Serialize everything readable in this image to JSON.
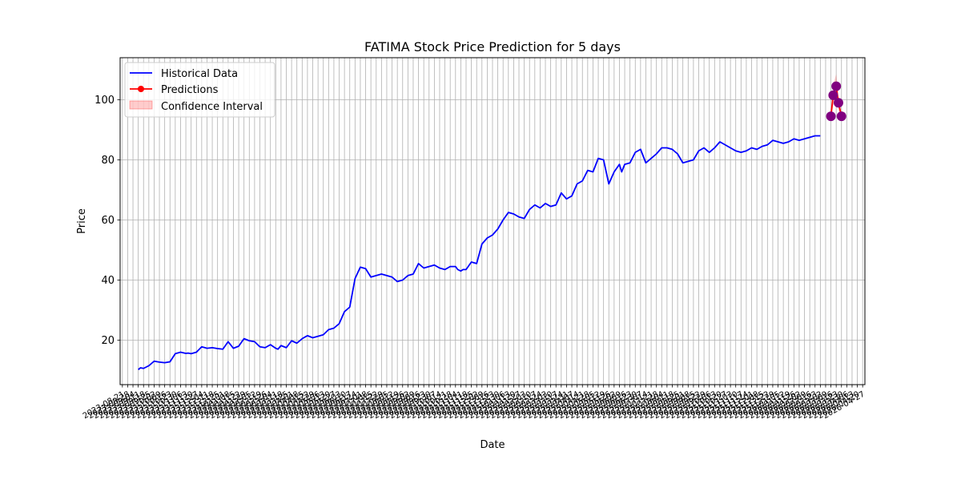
{
  "chart_data": {
    "type": "line",
    "title": "FATIMA Stock Price Prediction for 5 days",
    "xlabel": "Date",
    "ylabel": "Price",
    "ylim": [
      5.2,
      114
    ],
    "yticks": [
      20,
      40,
      60,
      80,
      100
    ],
    "grid": true,
    "legend_position": "upper-left",
    "legend": [
      "Historical Data",
      "Predictions",
      "Confidence Interval"
    ],
    "xtick_labels": [
      "2023-08-21",
      "2023-08-28",
      "2023-09-04",
      "2023-09-11",
      "2023-09-18",
      "2023-09-25",
      "2023-10-02",
      "2023-10-09",
      "2023-10-16",
      "2023-10-23",
      "2023-10-30",
      "2023-11-06",
      "2023-11-13",
      "2023-11-20",
      "2023-11-27",
      "2023-12-04",
      "2023-12-11",
      "2023-12-18",
      "2023-12-25",
      "2024-01-01",
      "2024-01-08",
      "2024-01-15",
      "2024-01-22",
      "2024-01-29",
      "2024-02-05",
      "2024-02-12",
      "2024-02-19",
      "2024-02-26",
      "2024-03-04",
      "2024-03-11",
      "2024-03-18",
      "2024-03-25",
      "2024-04-01",
      "2024-04-08",
      "2024-04-15",
      "2024-04-22",
      "2024-04-29",
      "2024-05-06",
      "2024-05-13",
      "2024-05-20",
      "2024-05-27",
      "2024-06-03",
      "2024-06-10",
      "2024-06-17",
      "2024-06-24",
      "2024-07-01",
      "2024-07-08",
      "2024-07-15",
      "2024-07-22",
      "2024-07-29",
      "2024-08-05",
      "2024-08-12",
      "2024-08-19",
      "2024-08-26",
      "2024-09-02",
      "2024-09-09",
      "2024-09-16",
      "2024-09-23",
      "2024-09-30",
      "2024-10-07",
      "2024-10-14",
      "2024-10-21",
      "2024-10-28",
      "2024-11-04",
      "2024-11-11",
      "2024-11-18",
      "2024-11-25",
      "2024-12-02",
      "2024-12-09",
      "2024-12-16",
      "2024-12-23",
      "2024-12-30",
      "2025-01-06",
      "2025-01-13",
      "2025-01-20",
      "2025-01-27",
      "2025-02-03",
      "2025-02-10",
      "2025-02-17",
      "2025-02-24",
      "2025-03-03",
      "2025-03-10",
      "2025-03-17",
      "2025-03-24",
      "2025-03-31",
      "2025-04-07",
      "2025-04-14",
      "2025-04-21",
      "2025-04-28",
      "2025-05-05",
      "2025-05-12",
      "2025-05-19",
      "2025-05-26",
      "2025-06-02",
      "2025-06-09",
      "2025-06-16",
      "2025-06-23",
      "2025-06-30",
      "2025-07-07",
      "2025-07-14",
      "2025-07-21",
      "2025-07-28",
      "2025-08-04",
      "2025-08-11",
      "2025-08-18",
      "2025-08-25",
      "2025-09-01",
      "2025-09-08",
      "2025-09-15",
      "2025-09-22",
      "2025-09-29",
      "2025-10-06",
      "2025-10-13",
      "2025-10-20",
      "2025-10-27",
      "2025-11-03",
      "2025-11-10",
      "2025-11-17",
      "2025-11-24",
      "2025-12-01",
      "2025-12-08",
      "2025-12-15",
      "2025-12-22",
      "2025-12-29",
      "2026-01-05",
      "2026-01-12",
      "2026-01-19",
      "2026-01-26",
      "2026-02-02",
      "2026-02-09",
      "2026-02-16",
      "2026-02-23",
      "2026-03-02",
      "2026-03-09",
      "2026-03-16",
      "2026-03-23",
      "2026-03-30",
      "2026-04-06",
      "2026-04-13",
      "2026-04-20",
      "2026-04-27"
    ],
    "series": [
      {
        "name": "Historical Data",
        "color": "#0000ff",
        "x": [
          "2023-09-11",
          "2023-09-14",
          "2023-09-18",
          "2023-09-25",
          "2023-10-02",
          "2023-10-09",
          "2023-10-16",
          "2023-10-23",
          "2023-10-30",
          "2023-11-06",
          "2023-11-13",
          "2023-11-16",
          "2023-11-20",
          "2023-11-27",
          "2023-12-04",
          "2023-12-11",
          "2023-12-18",
          "2023-12-25",
          "2024-01-01",
          "2024-01-08",
          "2024-01-15",
          "2024-01-22",
          "2024-01-29",
          "2024-02-05",
          "2024-02-12",
          "2024-02-19",
          "2024-02-26",
          "2024-03-04",
          "2024-03-11",
          "2024-03-14",
          "2024-03-18",
          "2024-03-25",
          "2024-04-01",
          "2024-04-08",
          "2024-04-15",
          "2024-04-22",
          "2024-04-29",
          "2024-05-06",
          "2024-05-13",
          "2024-05-20",
          "2024-05-27",
          "2024-06-03",
          "2024-06-10",
          "2024-06-17",
          "2024-06-24",
          "2024-07-01",
          "2024-07-08",
          "2024-07-15",
          "2024-07-22",
          "2024-07-29",
          "2024-08-05",
          "2024-08-12",
          "2024-08-19",
          "2024-08-26",
          "2024-09-02",
          "2024-09-09",
          "2024-09-16",
          "2024-09-23",
          "2024-09-30",
          "2024-10-07",
          "2024-10-14",
          "2024-10-21",
          "2024-10-28",
          "2024-11-04",
          "2024-11-07",
          "2024-11-11",
          "2024-11-14",
          "2024-11-18",
          "2024-11-25",
          "2024-12-02",
          "2024-12-09",
          "2024-12-16",
          "2024-12-23",
          "2024-12-30",
          "2025-01-06",
          "2025-01-13",
          "2025-01-20",
          "2025-01-27",
          "2025-02-03",
          "2025-02-10",
          "2025-02-17",
          "2025-02-24",
          "2025-03-03",
          "2025-03-10",
          "2025-03-17",
          "2025-03-24",
          "2025-03-31",
          "2025-04-07",
          "2025-04-14",
          "2025-04-21",
          "2025-04-28",
          "2025-05-05",
          "2025-05-12",
          "2025-05-19",
          "2025-05-26",
          "2025-06-02",
          "2025-06-09",
          "2025-06-12",
          "2025-06-16",
          "2025-06-23",
          "2025-06-30",
          "2025-07-07",
          "2025-07-14",
          "2025-07-21",
          "2025-07-28",
          "2025-08-04",
          "2025-08-11",
          "2025-08-18",
          "2025-08-25",
          "2025-09-01",
          "2025-09-08",
          "2025-09-15",
          "2025-09-22",
          "2025-09-29",
          "2025-10-06",
          "2025-10-13",
          "2025-10-20",
          "2025-10-27",
          "2025-11-03",
          "2025-11-10",
          "2025-11-17",
          "2025-11-24",
          "2025-12-01",
          "2025-12-08",
          "2025-12-15",
          "2025-12-22",
          "2025-12-29",
          "2026-01-05",
          "2026-01-12",
          "2026-01-19",
          "2026-01-26",
          "2026-02-02",
          "2026-02-09",
          "2026-02-16",
          "2026-02-23",
          "2026-03-02"
        ],
        "values": [
          10.2,
          10.8,
          10.6,
          11.5,
          13.0,
          12.7,
          12.5,
          12.8,
          15.5,
          16.0,
          15.6,
          15.7,
          15.5,
          16.0,
          17.8,
          17.3,
          17.5,
          17.2,
          17.0,
          19.5,
          17.3,
          18.0,
          20.5,
          19.8,
          19.5,
          17.8,
          17.5,
          18.5,
          17.3,
          17.0,
          18.2,
          17.5,
          19.8,
          19.0,
          20.5,
          21.5,
          20.8,
          21.3,
          21.8,
          23.5,
          24.0,
          25.5,
          29.5,
          31.0,
          40.5,
          44.3,
          43.8,
          41.0,
          41.5,
          42.0,
          41.5,
          41.0,
          39.5,
          40.0,
          41.5,
          42.0,
          45.5,
          44.0,
          44.5,
          45.0,
          44.0,
          43.5,
          44.5,
          44.5,
          43.5,
          43.0,
          43.5,
          43.5,
          46.0,
          45.5,
          52.0,
          54.0,
          55.0,
          57.0,
          60.0,
          62.5,
          62.0,
          61.0,
          60.5,
          63.5,
          65.0,
          64.0,
          65.5,
          64.5,
          65.0,
          69.0,
          67.0,
          68.0,
          72.0,
          73.0,
          76.5,
          76.0,
          80.5,
          80.0,
          72.0,
          76.0,
          78.5,
          76.0,
          78.5,
          79.0,
          82.5,
          83.5,
          79.0,
          80.5,
          82.0,
          84.0,
          84.0,
          83.5,
          82.0,
          79.0,
          79.5,
          80.0,
          83.0,
          84.0,
          82.5,
          84.0,
          86.0,
          85.0,
          84.0,
          83.0,
          82.5,
          83.0,
          84.0,
          83.5,
          84.5,
          85.0,
          86.5,
          86.0,
          85.5,
          86.0,
          87.0,
          86.5,
          87.0,
          87.5,
          88.0,
          88.0
        ]
      },
      {
        "name": "Predictions",
        "color": "#ff0000",
        "x": [
          "2026-03-16",
          "2026-03-19",
          "2026-03-23",
          "2026-03-26",
          "2026-03-30"
        ],
        "values": [
          94.5,
          101.5,
          104.5,
          99.0,
          94.5
        ],
        "marker_color": "#800080"
      },
      {
        "name": "Confidence Interval",
        "color": "#ff0000",
        "x": [
          "2026-03-16",
          "2026-03-19",
          "2026-03-23",
          "2026-03-26",
          "2026-03-30"
        ],
        "lower": [
          93.5,
          98.0,
          100.5,
          96.5,
          93.5
        ],
        "upper": [
          95.5,
          105.0,
          108.5,
          101.5,
          95.5
        ]
      }
    ]
  }
}
